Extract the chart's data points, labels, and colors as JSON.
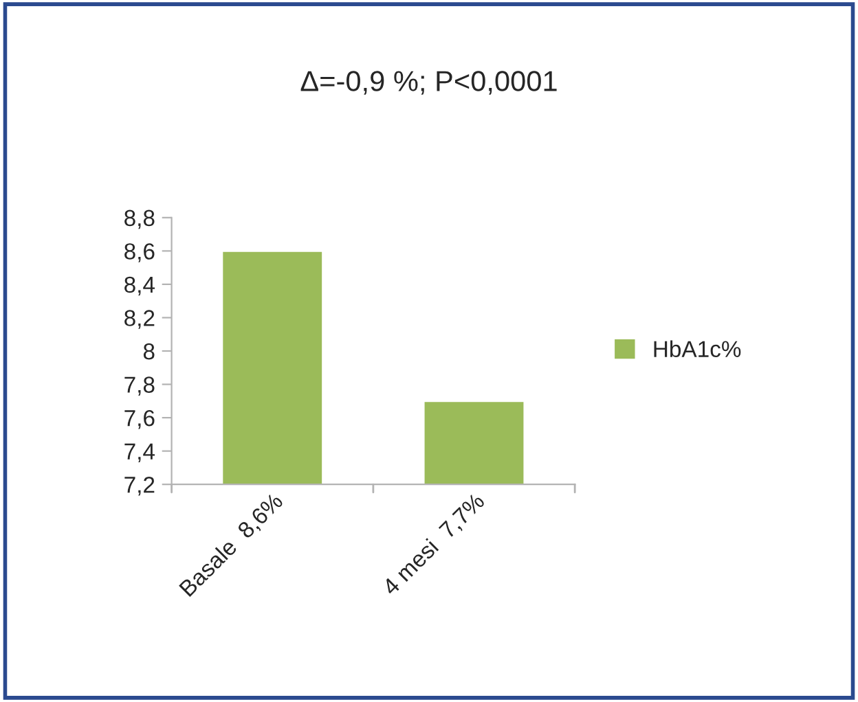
{
  "chart_data": {
    "type": "bar",
    "title": "Δ=-0,9 %; P<0,0001",
    "categories": [
      "Basale  8,6%",
      "4 mesi  7,7%"
    ],
    "series": [
      {
        "name": "HbA1c%",
        "color": "#9bbb59",
        "values": [
          8.6,
          7.7
        ]
      }
    ],
    "ylim": [
      7.2,
      8.8
    ],
    "yticks": [
      {
        "value": 7.2,
        "label": "7,2"
      },
      {
        "value": 7.4,
        "label": "7,4"
      },
      {
        "value": 7.6,
        "label": "7,6"
      },
      {
        "value": 7.8,
        "label": "7,8"
      },
      8,
      {
        "value": 8.2,
        "label": "8,2"
      },
      {
        "value": 8.4,
        "label": "8,4"
      },
      {
        "value": 8.6,
        "label": "8,6"
      },
      {
        "value": 8.8,
        "label": "8,8"
      }
    ],
    "grid": false,
    "legend": "right"
  }
}
